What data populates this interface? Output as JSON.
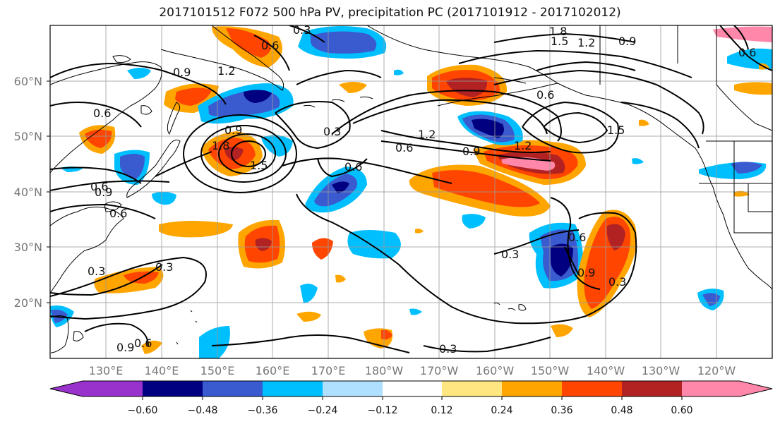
{
  "title": "2017101512 F072 500 hPa PV, precipitation PC (2017101912 - 2017102012)",
  "map": {
    "lat_labels": [
      "60°N",
      "50°N",
      "40°N",
      "30°N",
      "20°N"
    ],
    "lon_labels": [
      "130°E",
      "140°E",
      "150°E",
      "160°E",
      "170°E",
      "180°W",
      "170°W",
      "160°W",
      "150°W",
      "140°W",
      "130°W",
      "120°W"
    ],
    "contour_labels": [
      "0.3",
      "0.6",
      "0.9",
      "1.2",
      "1.5",
      "1.8",
      "0.9",
      "0.6",
      "0.3",
      "0.6",
      "1.2",
      "0.9",
      "0.6",
      "0.3",
      "0.6",
      "0.9",
      "0.3",
      "0.6",
      "1.2",
      "1.5",
      "1.8",
      "0.9",
      "1.2",
      "1.5",
      "0.6",
      "0.3",
      "0.9",
      "0.6",
      "0.3",
      "0.6",
      "0.9",
      "0.6",
      "0.3"
    ],
    "colors": {
      "neg060": "#9932cc",
      "neg048": "#000080",
      "neg036": "#3a5bd0",
      "neg024": "#00bfff",
      "neg012": "#b0e0ff",
      "zero": "#ffffff",
      "pos012": "#ffe680",
      "pos024": "#ffa500",
      "pos036": "#ff4500",
      "pos048": "#b22222",
      "pos060": "#ff88aa"
    }
  },
  "colorbar": {
    "ticks": [
      "−0.60",
      "−0.48",
      "−0.36",
      "−0.24",
      "−0.12",
      "0.12",
      "0.24",
      "0.36",
      "0.48",
      "0.60"
    ]
  }
}
